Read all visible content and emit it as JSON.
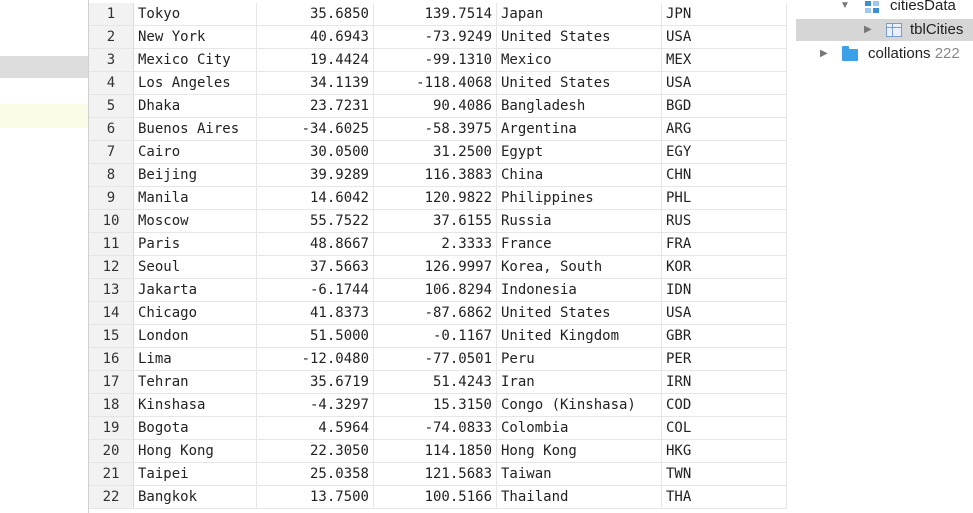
{
  "table": {
    "rows": [
      {
        "n": "1",
        "city": "Tokyo",
        "lat": "35.6850",
        "lng": "139.7514",
        "country": "Japan",
        "iso": "JPN"
      },
      {
        "n": "2",
        "city": "New York",
        "lat": "40.6943",
        "lng": "-73.9249",
        "country": "United States",
        "iso": "USA"
      },
      {
        "n": "3",
        "city": "Mexico City",
        "lat": "19.4424",
        "lng": "-99.1310",
        "country": "Mexico",
        "iso": "MEX"
      },
      {
        "n": "4",
        "city": "Los Angeles",
        "lat": "34.1139",
        "lng": "-118.4068",
        "country": "United States",
        "iso": "USA"
      },
      {
        "n": "5",
        "city": "Dhaka",
        "lat": "23.7231",
        "lng": "90.4086",
        "country": "Bangladesh",
        "iso": "BGD"
      },
      {
        "n": "6",
        "city": "Buenos Aires",
        "lat": "-34.6025",
        "lng": "-58.3975",
        "country": "Argentina",
        "iso": "ARG"
      },
      {
        "n": "7",
        "city": "Cairo",
        "lat": "30.0500",
        "lng": "31.2500",
        "country": "Egypt",
        "iso": "EGY"
      },
      {
        "n": "8",
        "city": "Beijing",
        "lat": "39.9289",
        "lng": "116.3883",
        "country": "China",
        "iso": "CHN"
      },
      {
        "n": "9",
        "city": "Manila",
        "lat": "14.6042",
        "lng": "120.9822",
        "country": "Philippines",
        "iso": "PHL"
      },
      {
        "n": "10",
        "city": "Moscow",
        "lat": "55.7522",
        "lng": "37.6155",
        "country": "Russia",
        "iso": "RUS"
      },
      {
        "n": "11",
        "city": "Paris",
        "lat": "48.8667",
        "lng": "2.3333",
        "country": "France",
        "iso": "FRA"
      },
      {
        "n": "12",
        "city": "Seoul",
        "lat": "37.5663",
        "lng": "126.9997",
        "country": "Korea, South",
        "iso": "KOR"
      },
      {
        "n": "13",
        "city": "Jakarta",
        "lat": "-6.1744",
        "lng": "106.8294",
        "country": "Indonesia",
        "iso": "IDN"
      },
      {
        "n": "14",
        "city": "Chicago",
        "lat": "41.8373",
        "lng": "-87.6862",
        "country": "United States",
        "iso": "USA"
      },
      {
        "n": "15",
        "city": "London",
        "lat": "51.5000",
        "lng": "-0.1167",
        "country": "United Kingdom",
        "iso": "GBR"
      },
      {
        "n": "16",
        "city": "Lima",
        "lat": "-12.0480",
        "lng": "-77.0501",
        "country": "Peru",
        "iso": "PER"
      },
      {
        "n": "17",
        "city": "Tehran",
        "lat": "35.6719",
        "lng": "51.4243",
        "country": "Iran",
        "iso": "IRN"
      },
      {
        "n": "18",
        "city": "Kinshasa",
        "lat": "-4.3297",
        "lng": "15.3150",
        "country": "Congo (Kinshasa)",
        "iso": "COD"
      },
      {
        "n": "19",
        "city": "Bogota",
        "lat": "4.5964",
        "lng": "-74.0833",
        "country": "Colombia",
        "iso": "COL"
      },
      {
        "n": "20",
        "city": "Hong Kong",
        "lat": "22.3050",
        "lng": "114.1850",
        "country": "Hong Kong",
        "iso": "HKG"
      },
      {
        "n": "21",
        "city": "Taipei",
        "lat": "25.0358",
        "lng": "121.5683",
        "country": "Taiwan",
        "iso": "TWN"
      },
      {
        "n": "22",
        "city": "Bangkok",
        "lat": "13.7500",
        "lng": "100.5166",
        "country": "Thailand",
        "iso": "THA"
      }
    ]
  },
  "tree": {
    "db_label": "citiesData",
    "table_label": "tblCities",
    "collations_label": "collations",
    "collations_count": "222"
  },
  "icons": {
    "expanded": "triangle-down-icon",
    "collapsed": "triangle-right-icon",
    "database": "database-icon",
    "table": "table-icon",
    "folder": "folder-icon"
  },
  "colors": {
    "row_number_bg": "#f2f2f2",
    "selected_tree_row": "#d6d6d6",
    "folder": "#3ba0e6"
  }
}
